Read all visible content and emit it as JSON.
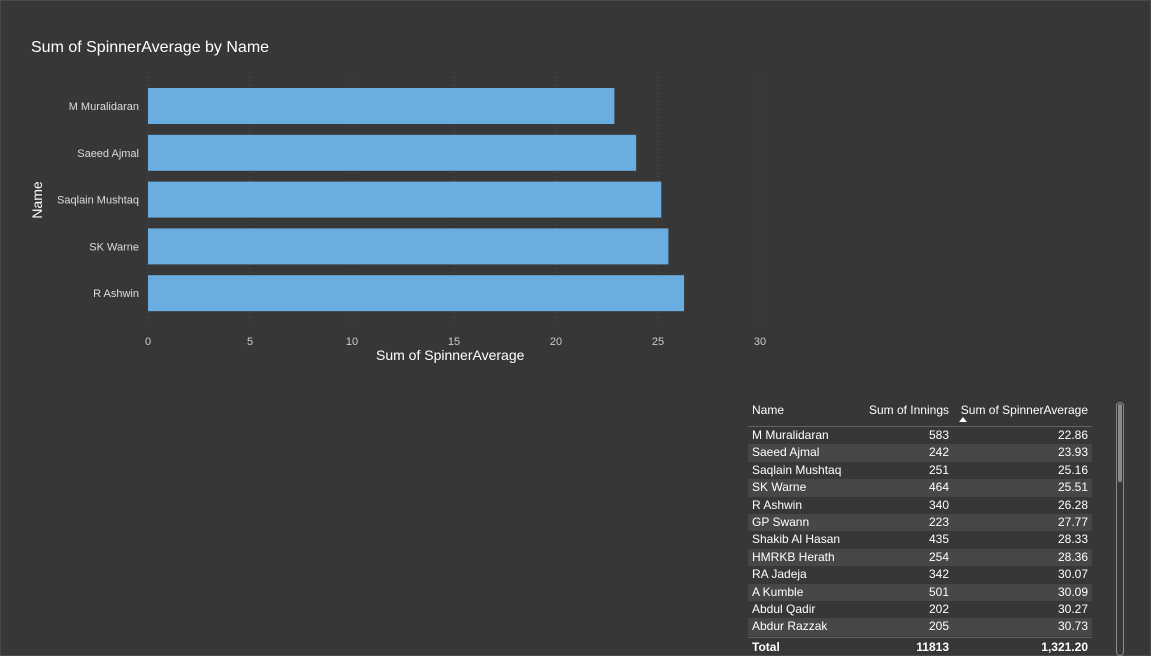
{
  "chart_data": {
    "type": "bar",
    "orientation": "horizontal",
    "title": "Sum of SpinnerAverage by Name",
    "xlabel": "Sum of SpinnerAverage",
    "ylabel": "Name",
    "categories": [
      "M Muralidaran",
      "Saeed Ajmal",
      "Saqlain Mushtaq",
      "SK Warne",
      "R Ashwin"
    ],
    "values": [
      22.86,
      23.93,
      25.16,
      25.51,
      26.28
    ],
    "xlim": [
      0,
      30
    ],
    "xticks": [
      "0",
      "5",
      "10",
      "15",
      "20",
      "25",
      "30"
    ],
    "bar_color": "#6aade0",
    "grid": "vertical dotted"
  },
  "table": {
    "headers": {
      "name": "Name",
      "innings": "Sum of Innings",
      "avg": "Sum of SpinnerAverage"
    },
    "sorted_column": "Sum of SpinnerAverage",
    "rows": [
      {
        "name": "M Muralidaran",
        "innings": "583",
        "avg": "22.86"
      },
      {
        "name": "Saeed Ajmal",
        "innings": "242",
        "avg": "23.93"
      },
      {
        "name": "Saqlain Mushtaq",
        "innings": "251",
        "avg": "25.16"
      },
      {
        "name": "SK Warne",
        "innings": "464",
        "avg": "25.51"
      },
      {
        "name": "R Ashwin",
        "innings": "340",
        "avg": "26.28"
      },
      {
        "name": "GP Swann",
        "innings": "223",
        "avg": "27.77"
      },
      {
        "name": "Shakib Al Hasan",
        "innings": "435",
        "avg": "28.33"
      },
      {
        "name": "HMRKB Herath",
        "innings": "254",
        "avg": "28.36"
      },
      {
        "name": "RA Jadeja",
        "innings": "342",
        "avg": "30.07"
      },
      {
        "name": "A Kumble",
        "innings": "501",
        "avg": "30.09"
      },
      {
        "name": "Abdul Qadir",
        "innings": "202",
        "avg": "30.27"
      },
      {
        "name": "Abdur Razzak",
        "innings": "205",
        "avg": "30.73"
      }
    ],
    "total": {
      "name": "Total",
      "innings": "11813",
      "avg": "1,321.20"
    }
  }
}
